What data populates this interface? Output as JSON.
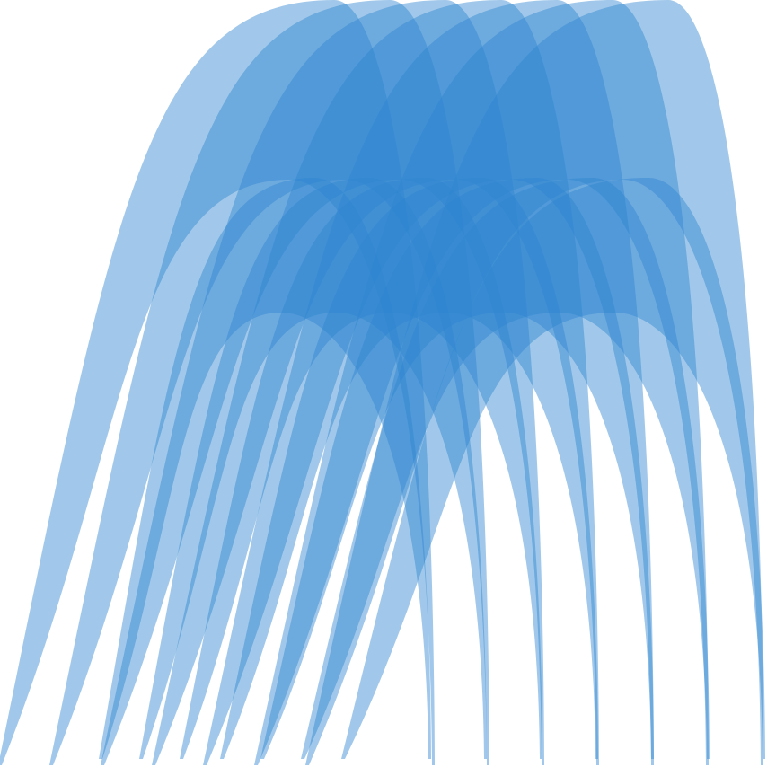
{
  "graphic": {
    "background_color": "#ffffff",
    "arch_color": "#2f86d0",
    "arch_opacity": 0.45,
    "tall_arch_count": 7,
    "short_arch_count": 7
  }
}
